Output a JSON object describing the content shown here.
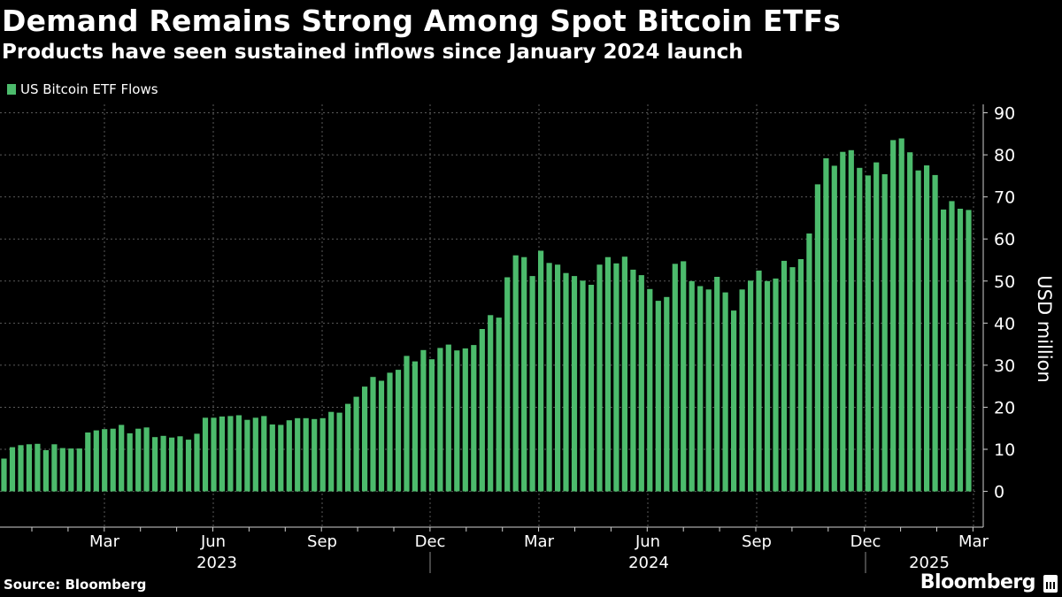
{
  "chart_data": {
    "type": "bar",
    "title": "Demand Remains Strong Among Spot Bitcoin ETFs",
    "subtitle": "Products have seen sustained inflows since January 2024 launch",
    "ylabel": "USD million",
    "ylim": [
      -8.5,
      92
    ],
    "yticks": [
      0,
      10,
      20,
      30,
      40,
      50,
      60,
      70,
      80,
      90
    ],
    "grid": true,
    "legend_position": "top-left",
    "series": [
      {
        "name": "US Bitcoin ETF Flows",
        "color": "#4cbb6c",
        "values": [
          7.8,
          10.5,
          11.0,
          11.2,
          11.3,
          9.8,
          11.2,
          10.3,
          10.2,
          10.2,
          14.0,
          14.5,
          14.8,
          14.9,
          15.8,
          13.8,
          14.9,
          15.2,
          12.9,
          13.2,
          12.8,
          13.1,
          12.3,
          13.7,
          17.5,
          17.5,
          17.8,
          17.9,
          18.1,
          17.0,
          17.5,
          17.9,
          15.9,
          15.8,
          16.9,
          17.4,
          17.4,
          17.2,
          17.4,
          18.9,
          18.7,
          20.8,
          22.5,
          24.9,
          27.2,
          26.3,
          28.2,
          28.9,
          32.2,
          30.9,
          33.6,
          31.4,
          34.1,
          34.9,
          33.5,
          34.0,
          34.8,
          38.6,
          41.9,
          41.3,
          50.9,
          56.1,
          55.7,
          51.2,
          57.2,
          54.3,
          53.9,
          51.9,
          51.2,
          50.1,
          49.1,
          53.9,
          55.7,
          54.2,
          55.8,
          52.7,
          51.4,
          48.1,
          45.3,
          46.2,
          54.1,
          54.7,
          50.0,
          48.8,
          48.0,
          51.0,
          47.3,
          43.0,
          48.0,
          50.1,
          52.5,
          50.0,
          50.6,
          54.8,
          53.3,
          55.2,
          61.3,
          73.0,
          79.2,
          77.4,
          80.7,
          81.1,
          76.9,
          75.1,
          78.2,
          75.4,
          83.5,
          83.9,
          80.6,
          76.3,
          77.5,
          75.2,
          67.0,
          69.0,
          67.2,
          66.9
        ]
      }
    ],
    "x_month_labels": [
      "Mar",
      "Jun",
      "Sep",
      "Dec",
      "Mar",
      "Jun",
      "Sep",
      "Dec",
      "Mar"
    ],
    "x_year_labels": [
      "2023",
      "2024",
      "2025"
    ]
  },
  "footer": {
    "source": "Source: Bloomberg",
    "brand": "Bloomberg"
  }
}
